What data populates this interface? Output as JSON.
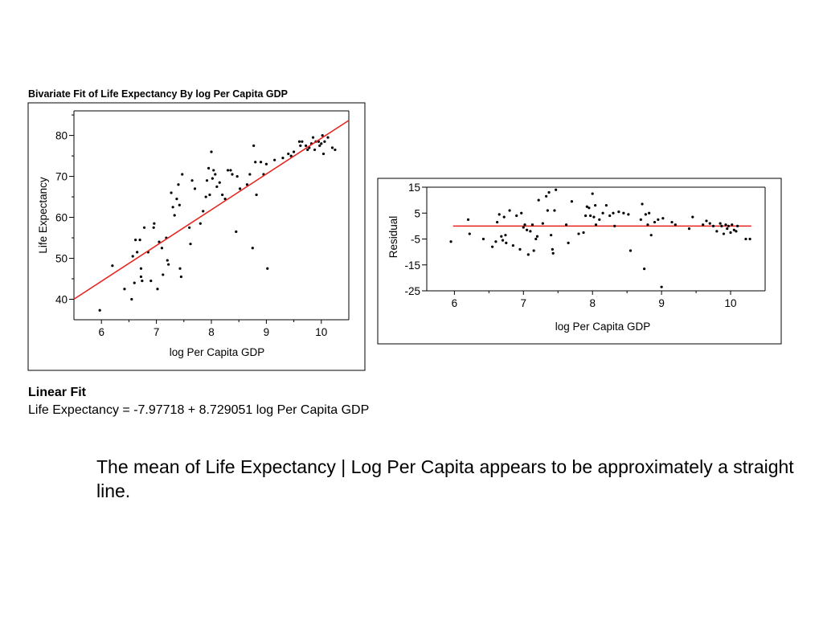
{
  "fit_chart": {
    "title": "Bivariate Fit of Life Expectancy By log Per Capita GDP",
    "xlabel": "log Per Capita GDP",
    "ylabel": "Life Expectancy"
  },
  "residual_chart": {
    "xlabel": "log Per Capita GDP",
    "ylabel": "Residual"
  },
  "linear_fit": {
    "heading": "Linear Fit",
    "equation": "Life Expectancy = -7.97718 + 8.729051 log Per Capita GDP"
  },
  "note": "The mean of Life Expectancy | Log Per Capita appears to be approximately a straight line.",
  "chart_data": [
    {
      "type": "scatter",
      "title": "Bivariate Fit of Life Expectancy By log Per Capita GDP",
      "xlabel": "log Per Capita GDP",
      "ylabel": "Life Expectancy",
      "xlim": [
        5.5,
        10.5
      ],
      "ylim": [
        35,
        86
      ],
      "xticks": [
        6,
        7,
        8,
        9,
        10
      ],
      "yticks": [
        40,
        50,
        60,
        70,
        80
      ],
      "fit_line": {
        "intercept": -7.97718,
        "slope": 8.729051,
        "color": "#e8231e"
      },
      "point_color": "#000000",
      "x": [
        5.97,
        6.2,
        6.42,
        6.55,
        6.57,
        6.6,
        6.62,
        6.65,
        6.7,
        6.72,
        6.72,
        6.74,
        6.78,
        6.85,
        6.9,
        6.95,
        6.96,
        7.02,
        7.05,
        7.1,
        7.12,
        7.18,
        7.2,
        7.22,
        7.27,
        7.3,
        7.33,
        7.37,
        7.4,
        7.42,
        7.43,
        7.45,
        7.47,
        7.6,
        7.62,
        7.65,
        7.7,
        7.8,
        7.85,
        7.9,
        7.92,
        7.95,
        7.97,
        8.0,
        8.02,
        8.04,
        8.07,
        8.1,
        8.15,
        8.2,
        8.25,
        8.3,
        8.35,
        8.38,
        8.45,
        8.47,
        8.52,
        8.65,
        8.7,
        8.75,
        8.77,
        8.8,
        8.82,
        8.9,
        8.95,
        9.0,
        9.02,
        9.15,
        9.3,
        9.4,
        9.45,
        9.5,
        9.6,
        9.62,
        9.65,
        9.72,
        9.75,
        9.78,
        9.82,
        9.85,
        9.88,
        9.9,
        9.95,
        9.97,
        10.0,
        10.02,
        10.04,
        10.06,
        10.12,
        10.2,
        10.25
      ],
      "y": [
        37.3,
        48.2,
        42.5,
        40.0,
        50.5,
        44.0,
        54.5,
        51.5,
        54.5,
        47.5,
        45.5,
        44.5,
        57.5,
        51.5,
        44.5,
        57.5,
        58.5,
        42.5,
        54.0,
        52.5,
        46.0,
        55.0,
        49.5,
        48.5,
        66.0,
        62.5,
        60.5,
        64.5,
        68.0,
        63.0,
        47.5,
        45.5,
        70.5,
        57.5,
        53.5,
        69.0,
        67.0,
        58.5,
        61.5,
        65.0,
        69.0,
        72.0,
        65.5,
        76.0,
        69.5,
        71.5,
        70.5,
        67.5,
        68.5,
        65.5,
        64.5,
        71.5,
        71.5,
        70.5,
        56.5,
        70.0,
        67.0,
        68.0,
        70.5,
        52.5,
        77.5,
        73.5,
        65.5,
        73.5,
        70.5,
        73.0,
        47.5,
        74.0,
        74.5,
        75.5,
        75.0,
        76.0,
        78.5,
        77.5,
        78.5,
        77.5,
        76.5,
        77.0,
        78.0,
        79.5,
        76.5,
        78.5,
        78.5,
        77.5,
        78.0,
        80.0,
        75.5,
        78.5,
        79.5,
        77.0,
        76.5
      ]
    },
    {
      "type": "scatter",
      "title": "",
      "xlabel": "log Per Capita GDP",
      "ylabel": "Residual",
      "xlim": [
        5.6,
        10.5
      ],
      "ylim": [
        -25,
        15
      ],
      "xticks": [
        6,
        7,
        8,
        9,
        10
      ],
      "yticks": [
        15,
        5,
        -5,
        -15,
        -25
      ],
      "zero_line": {
        "y": 0,
        "color": "#e8231e"
      },
      "point_color": "#000000",
      "x": [
        5.95,
        6.2,
        6.22,
        6.42,
        6.55,
        6.6,
        6.62,
        6.65,
        6.68,
        6.7,
        6.72,
        6.74,
        6.75,
        6.8,
        6.85,
        6.9,
        6.95,
        6.97,
        7.0,
        7.02,
        7.05,
        7.07,
        7.1,
        7.13,
        7.15,
        7.18,
        7.2,
        7.22,
        7.28,
        7.33,
        7.35,
        7.37,
        7.4,
        7.42,
        7.43,
        7.45,
        7.47,
        7.62,
        7.65,
        7.7,
        7.8,
        7.87,
        7.9,
        7.92,
        7.95,
        7.97,
        8.0,
        8.02,
        8.04,
        8.05,
        8.1,
        8.15,
        8.2,
        8.25,
        8.3,
        8.32,
        8.38,
        8.45,
        8.52,
        8.55,
        8.7,
        8.72,
        8.75,
        8.77,
        8.8,
        8.82,
        8.85,
        8.9,
        8.95,
        9.0,
        9.02,
        9.15,
        9.2,
        9.4,
        9.45,
        9.6,
        9.65,
        9.7,
        9.75,
        9.8,
        9.85,
        9.87,
        9.9,
        9.93,
        9.95,
        9.97,
        10.0,
        10.02,
        10.05,
        10.08,
        10.1,
        10.22,
        10.28
      ],
      "y": [
        -6.0,
        2.5,
        -3.0,
        -5.0,
        -8.0,
        -6.0,
        1.5,
        4.5,
        -4.0,
        -5.5,
        3.5,
        -3.5,
        -6.5,
        6.0,
        -7.5,
        4.0,
        -9.0,
        5.0,
        -0.5,
        0.5,
        -1.5,
        -11.0,
        -2.0,
        0.5,
        -9.5,
        -5.0,
        -4.0,
        10.0,
        1.0,
        11.5,
        6.0,
        13.0,
        -3.5,
        -9.0,
        -10.5,
        6.0,
        14.0,
        0.5,
        -6.5,
        9.5,
        -3.0,
        -2.5,
        4.0,
        7.5,
        7.0,
        4.0,
        12.5,
        3.5,
        8.0,
        0.5,
        2.5,
        5.0,
        8.0,
        4.0,
        5.0,
        0.0,
        5.5,
        5.0,
        4.5,
        -9.5,
        2.5,
        8.5,
        -16.5,
        4.5,
        0.5,
        5.0,
        -3.5,
        1.5,
        2.5,
        -23.5,
        3.0,
        1.5,
        0.5,
        -1.0,
        3.5,
        0.5,
        2.0,
        1.0,
        0.0,
        -2.0,
        1.0,
        0.0,
        -3.0,
        0.5,
        -1.0,
        0.0,
        -2.5,
        0.5,
        -1.5,
        -2.0,
        0.0,
        -5.0,
        -5.0
      ]
    }
  ]
}
